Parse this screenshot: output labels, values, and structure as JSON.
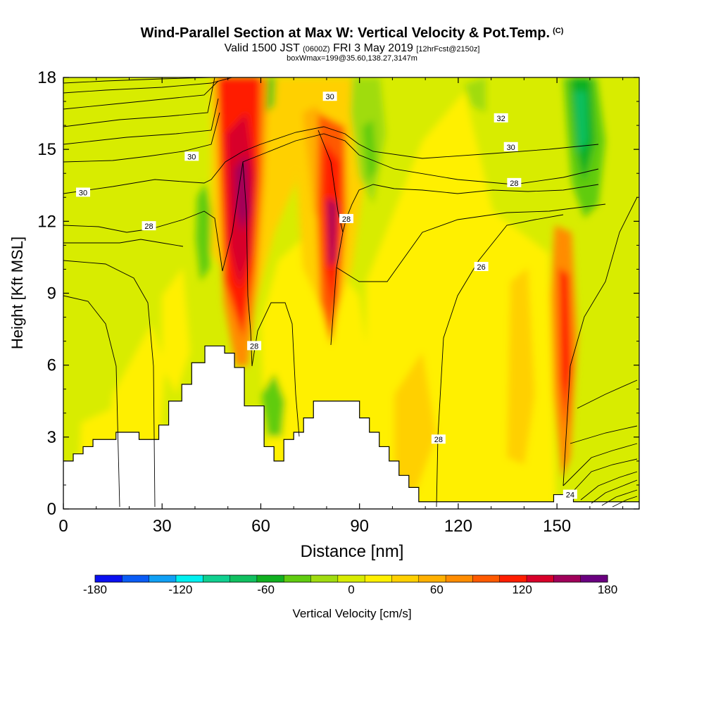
{
  "header": {
    "title": "Wind-Parallel Section at Max W: Vertical Velocity & Pot.Temp.",
    "title_mark": "(C)",
    "valid_prefix": "Valid 1500 JST",
    "valid_utc": "(0600Z)",
    "valid_date": "FRI 3 May 2019",
    "forecast_info": "[12hrFcst@2150z]",
    "box_info": "boxWmax=199@35.60,138.27,3147m"
  },
  "chart_data": {
    "type": "heatmap",
    "xlabel": "Distance [nm]",
    "ylabel": "Height [Kft MSL]",
    "xlim": [
      0,
      175
    ],
    "ylim": [
      0,
      18
    ],
    "x_ticks": [
      0,
      30,
      60,
      90,
      120,
      150
    ],
    "y_ticks": [
      0,
      3,
      6,
      9,
      12,
      15,
      18
    ],
    "colorbar": {
      "label": "Vertical Velocity [cm/s]",
      "min": -180,
      "max": 180,
      "tick_labels": [
        -180,
        -120,
        -60,
        0,
        60,
        120,
        180
      ],
      "colors": [
        "#0a10f0",
        "#0a5cf5",
        "#10a0f5",
        "#00f0f0",
        "#10d090",
        "#10c060",
        "#10b020",
        "#60cc10",
        "#a0dc10",
        "#d8ec00",
        "#fff000",
        "#ffd000",
        "#ffb000",
        "#ff8c00",
        "#ff5a00",
        "#ff1e00",
        "#d8002a",
        "#a0005a",
        "#6a0080"
      ]
    },
    "contour_labels": [
      {
        "value": "30",
        "x": 81,
        "y": 17.2
      },
      {
        "value": "32",
        "x": 133,
        "y": 16.3
      },
      {
        "value": "30",
        "x": 136,
        "y": 15.1
      },
      {
        "value": "30",
        "x": 39,
        "y": 14.7
      },
      {
        "value": "30",
        "x": 6,
        "y": 13.2
      },
      {
        "value": "28",
        "x": 137,
        "y": 13.6
      },
      {
        "value": "28",
        "x": 26,
        "y": 11.8
      },
      {
        "value": "28",
        "x": 86,
        "y": 12.1
      },
      {
        "value": "26",
        "x": 127,
        "y": 10.1
      },
      {
        "value": "28",
        "x": 58,
        "y": 6.8
      },
      {
        "value": "28",
        "x": 114,
        "y": 2.9
      },
      {
        "value": "24",
        "x": 154,
        "y": 0.6
      }
    ],
    "updraft_maxima": [
      {
        "x": 54,
        "y": 12.5,
        "w": 180
      },
      {
        "x": 81,
        "y": 11.5,
        "w": 180
      },
      {
        "x": 152,
        "y": 6.5,
        "w": 130
      }
    ],
    "terrain": [
      [
        0,
        2.0
      ],
      [
        3,
        2.3
      ],
      [
        6,
        2.6
      ],
      [
        9,
        2.9
      ],
      [
        16,
        3.2
      ],
      [
        23,
        2.9
      ],
      [
        29,
        3.5
      ],
      [
        32,
        4.5
      ],
      [
        36,
        5.2
      ],
      [
        39,
        6.1
      ],
      [
        43,
        6.8
      ],
      [
        49,
        6.5
      ],
      [
        52,
        5.9
      ],
      [
        55,
        4.3
      ],
      [
        58,
        4.3
      ],
      [
        61,
        2.6
      ],
      [
        64,
        2.0
      ],
      [
        67,
        2.9
      ],
      [
        70,
        3.2
      ],
      [
        73,
        3.8
      ],
      [
        76,
        4.5
      ],
      [
        87,
        4.5
      ],
      [
        90,
        3.8
      ],
      [
        93,
        3.2
      ],
      [
        96,
        2.6
      ],
      [
        99,
        2.0
      ],
      [
        102,
        1.4
      ],
      [
        105,
        0.9
      ],
      [
        108,
        0.3
      ],
      [
        146,
        0.3
      ],
      [
        149,
        0.6
      ],
      [
        152,
        0.6
      ],
      [
        155,
        0.3
      ],
      [
        175,
        0.3
      ]
    ]
  }
}
